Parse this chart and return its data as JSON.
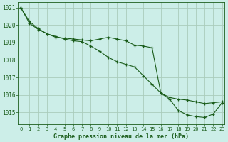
{
  "title": "Graphe pression niveau de la mer (hPa)",
  "background_color": "#cceee8",
  "grid_color": "#aaccbb",
  "line_color": "#1a5c1a",
  "xlim": [
    -0.3,
    23.3
  ],
  "ylim": [
    1014.3,
    1021.3
  ],
  "yticks": [
    1015,
    1016,
    1017,
    1018,
    1019,
    1020,
    1021
  ],
  "xticks": [
    0,
    1,
    2,
    3,
    4,
    5,
    6,
    7,
    8,
    9,
    10,
    11,
    12,
    13,
    14,
    15,
    16,
    17,
    18,
    19,
    20,
    21,
    22,
    23
  ],
  "series1": [
    1021.0,
    1020.2,
    1019.8,
    1019.5,
    1019.3,
    1019.25,
    1019.2,
    1019.15,
    1019.1,
    1019.2,
    1019.3,
    1019.2,
    1019.1,
    1018.85,
    1018.8,
    1018.7,
    1016.1,
    1015.85,
    1015.75,
    1015.7,
    1015.6,
    1015.5,
    1015.55,
    1015.6
  ],
  "series2": [
    1021.0,
    1020.1,
    1019.75,
    1019.5,
    1019.35,
    1019.2,
    1019.1,
    1019.05,
    1018.8,
    1018.5,
    1018.15,
    1017.9,
    1017.75,
    1017.6,
    1017.1,
    1016.6,
    1016.1,
    1015.75,
    1015.1,
    1014.85,
    1014.75,
    1014.7,
    1014.9,
    1015.55
  ]
}
